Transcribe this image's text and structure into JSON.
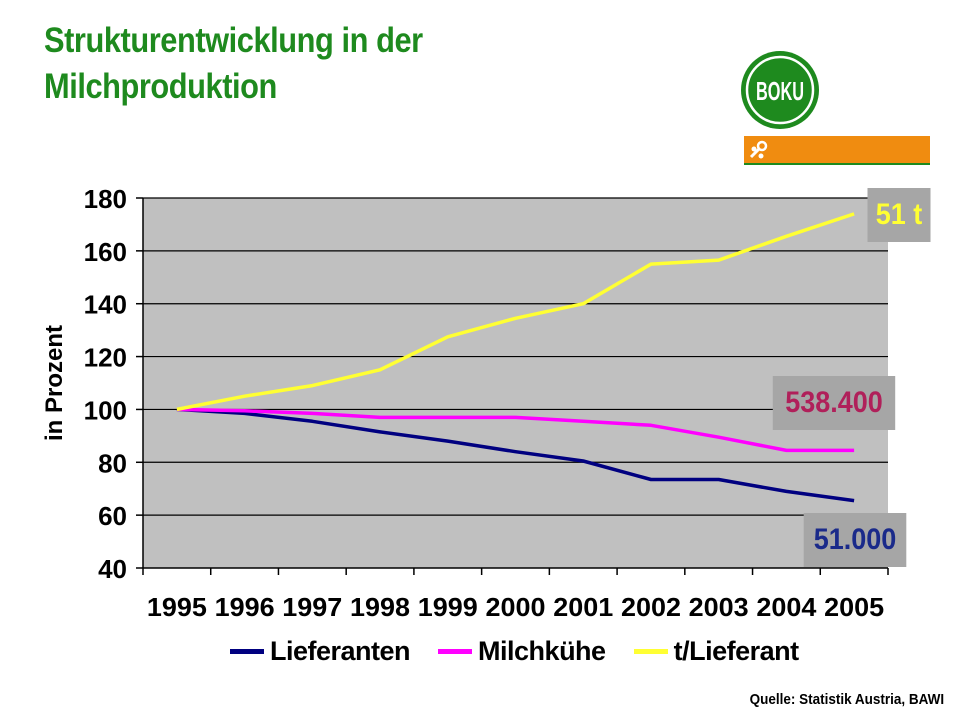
{
  "title": "Strukturentwicklung in der Milchproduktion",
  "logo_text": "BOKU",
  "source": "Quelle: Statistik Austria, BAWI",
  "callouts": {
    "top": "51 t",
    "mid": "538.400",
    "bot": "51.000"
  },
  "colors": {
    "title": "#1e8a1e",
    "plot_bg": "#c0c0c0",
    "lieferanten": "#000080",
    "milchkuehe": "#ff00ff",
    "t_lieferant": "#ffff33",
    "logo_orange": "#f08c10"
  },
  "chart_data": {
    "type": "line",
    "title": "",
    "xlabel": "",
    "ylabel": "in Prozent",
    "ylim": [
      40,
      180
    ],
    "yticks": [
      40,
      60,
      80,
      100,
      120,
      140,
      160,
      180
    ],
    "grid": true,
    "legend_position": "bottom",
    "categories": [
      "1995",
      "1996",
      "1997",
      "1998",
      "1999",
      "2000",
      "2001",
      "2002",
      "2003",
      "2004",
      "2005"
    ],
    "series": [
      {
        "name": "Lieferanten",
        "values": [
          100,
          98.5,
          95.5,
          91.5,
          88,
          84,
          80.5,
          73.5,
          73.5,
          69,
          65.5
        ]
      },
      {
        "name": "Milchkühe",
        "values": [
          100,
          99.5,
          98.5,
          97,
          97,
          97,
          95.5,
          94,
          89.5,
          84.5,
          84.5
        ]
      },
      {
        "name": "t/Lieferant",
        "values": [
          100,
          105,
          109,
          115,
          127.5,
          134.5,
          140,
          155,
          156.5,
          165.5,
          174
        ]
      }
    ]
  }
}
